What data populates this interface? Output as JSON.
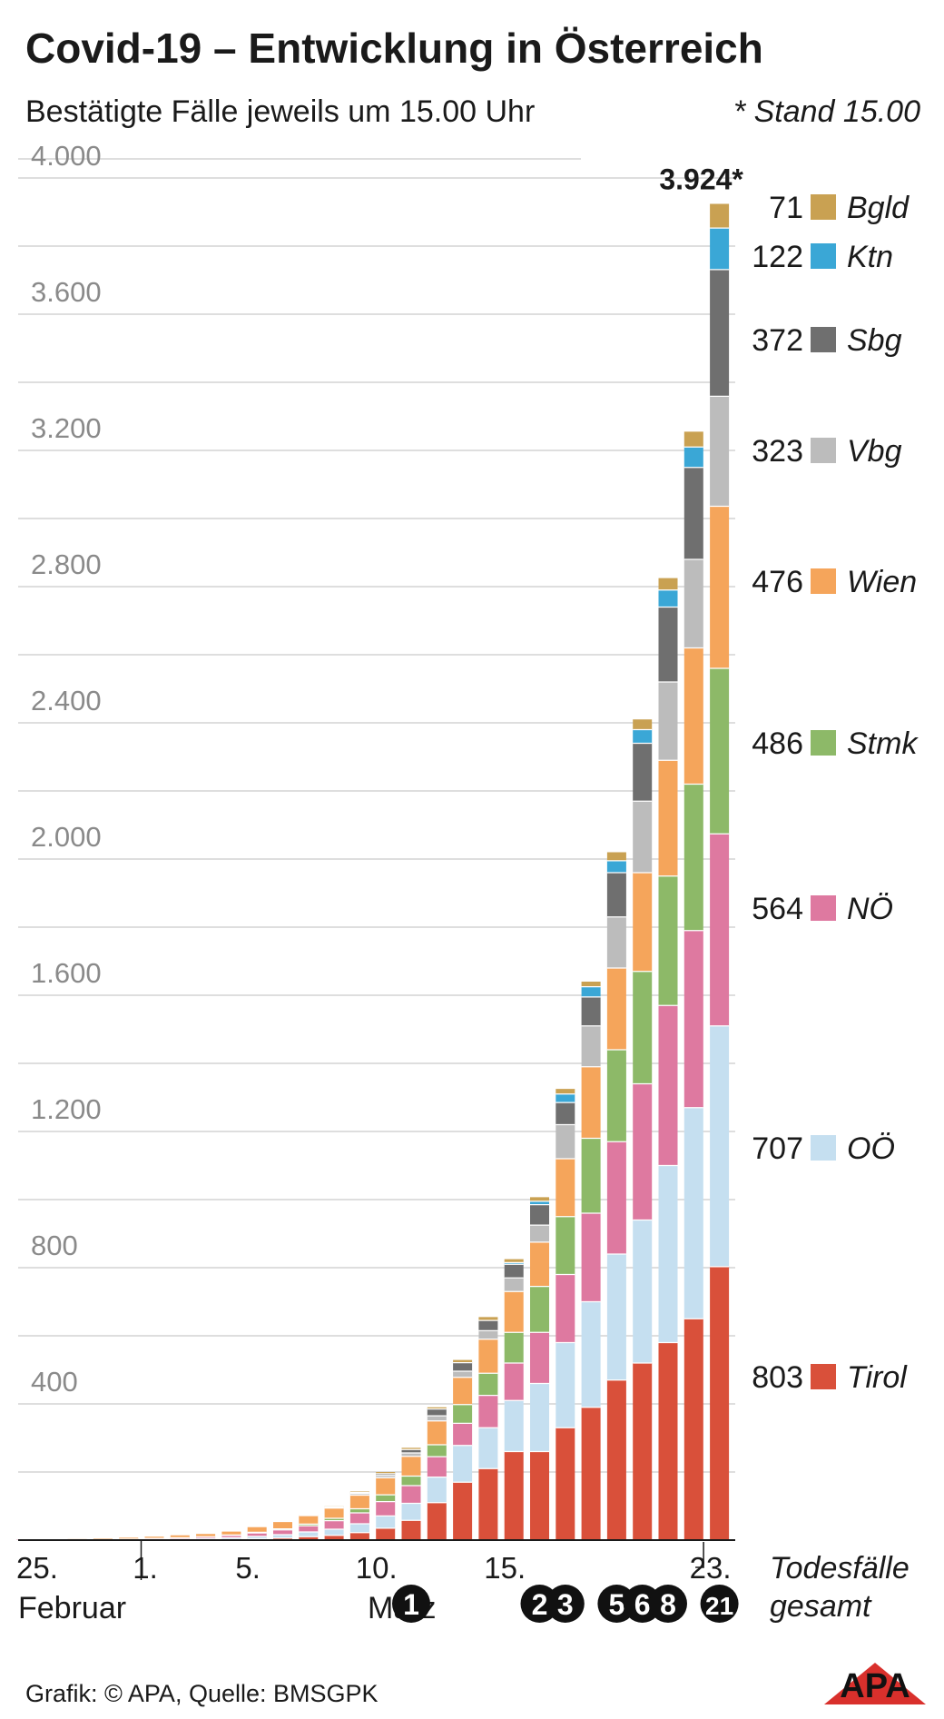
{
  "header": {
    "title": "Covid-19 – Entwicklung in Österreich",
    "subtitle": "Bestätigte Fälle jeweils um 15.00 Uhr",
    "stand_note": "* Stand 15.00"
  },
  "footer": {
    "credit": "Grafik: © APA, Quelle: BMSGPK",
    "logo_text": "APA"
  },
  "chart_data": {
    "type": "bar",
    "stacked": true,
    "title": "Covid-19 – Entwicklung in Österreich",
    "subtitle": "Bestätigte Fälle jeweils um 15.00 Uhr",
    "ylim": [
      0,
      4000
    ],
    "y_ticks": [
      400,
      800,
      1200,
      1600,
      2000,
      2400,
      2800,
      3200,
      3600,
      4000
    ],
    "y_tick_labels": [
      "400",
      "800",
      "1.200",
      "1.600",
      "2.000",
      "2.400",
      "2.800",
      "3.200",
      "3.600",
      "4.000"
    ],
    "grid": true,
    "x_tick_labels": [
      {
        "label": "25.",
        "index": 0
      },
      {
        "label": "1.",
        "index": 5
      },
      {
        "label": "5.",
        "index": 9
      },
      {
        "label": "10.",
        "index": 14
      },
      {
        "label": "15.",
        "index": 19
      },
      {
        "label": "23.",
        "index": 27
      }
    ],
    "month_labels": [
      {
        "label": "Februar",
        "index": 0
      },
      {
        "label": "März",
        "index": 15
      }
    ],
    "categories": [
      "25.02",
      "26.02",
      "27.02",
      "28.02",
      "29.02",
      "01.03",
      "02.03",
      "03.03",
      "04.03",
      "05.03",
      "06.03",
      "07.03",
      "08.03",
      "09.03",
      "10.03",
      "11.03",
      "12.03",
      "13.03",
      "14.03",
      "15.03",
      "16.03",
      "17.03",
      "18.03",
      "19.03",
      "20.03",
      "21.03",
      "22.03",
      "23.03"
    ],
    "total_label": "3.924*",
    "series": [
      {
        "name": "Tirol",
        "color": "#d9503a",
        "end_value": "803",
        "values": [
          0,
          0,
          0,
          0,
          0,
          0,
          0,
          1,
          2,
          4,
          6,
          10,
          14,
          22,
          35,
          58,
          110,
          170,
          210,
          260,
          260,
          330,
          390,
          470,
          520,
          580,
          650,
          803
        ]
      },
      {
        "name": "OÖ",
        "color": "#c5dff0",
        "end_value": "707",
        "values": [
          0,
          0,
          0,
          1,
          1,
          2,
          3,
          4,
          5,
          7,
          10,
          14,
          18,
          26,
          36,
          50,
          75,
          108,
          120,
          150,
          200,
          250,
          310,
          370,
          420,
          520,
          620,
          707
        ]
      },
      {
        "name": "NÖ",
        "color": "#de79a0",
        "end_value": "564",
        "values": [
          1,
          1,
          1,
          1,
          2,
          3,
          4,
          5,
          7,
          10,
          14,
          18,
          25,
          32,
          42,
          52,
          60,
          65,
          95,
          110,
          150,
          200,
          260,
          330,
          400,
          470,
          520,
          564
        ]
      },
      {
        "name": "Stmk",
        "color": "#8db968",
        "end_value": "486",
        "values": [
          0,
          0,
          0,
          0,
          0,
          0,
          0,
          0,
          1,
          2,
          3,
          5,
          7,
          12,
          20,
          28,
          35,
          55,
          65,
          90,
          135,
          170,
          220,
          270,
          330,
          380,
          430,
          486
        ]
      },
      {
        "name": "Wien",
        "color": "#f5a55b",
        "end_value": "476",
        "values": [
          0,
          1,
          2,
          3,
          4,
          5,
          7,
          8,
          10,
          15,
          20,
          25,
          30,
          40,
          50,
          58,
          70,
          80,
          100,
          120,
          130,
          170,
          210,
          240,
          290,
          340,
          400,
          476
        ]
      },
      {
        "name": "Vbg",
        "color": "#bcbcbc",
        "end_value": "323",
        "values": [
          0,
          0,
          0,
          0,
          0,
          0,
          0,
          0,
          0,
          0,
          0,
          0,
          2,
          5,
          7,
          10,
          15,
          18,
          25,
          40,
          50,
          100,
          120,
          150,
          210,
          230,
          260,
          323
        ]
      },
      {
        "name": "Sbg",
        "color": "#6f6f6f",
        "end_value": "372",
        "values": [
          0,
          0,
          0,
          0,
          0,
          0,
          0,
          0,
          0,
          0,
          0,
          1,
          2,
          3,
          5,
          10,
          20,
          25,
          30,
          40,
          60,
          65,
          85,
          130,
          170,
          220,
          270,
          372
        ]
      },
      {
        "name": "Ktn",
        "color": "#3aa7d6",
        "end_value": "122",
        "values": [
          0,
          0,
          0,
          0,
          0,
          0,
          0,
          0,
          0,
          0,
          0,
          0,
          0,
          0,
          0,
          0,
          0,
          0,
          0,
          5,
          10,
          25,
          30,
          35,
          40,
          50,
          60,
          122
        ]
      },
      {
        "name": "Bgld",
        "color": "#c9a152",
        "end_value": "71",
        "values": [
          0,
          0,
          0,
          0,
          0,
          0,
          0,
          0,
          0,
          0,
          0,
          1,
          2,
          3,
          5,
          5,
          5,
          8,
          10,
          10,
          12,
          15,
          15,
          25,
          30,
          35,
          45,
          71
        ]
      }
    ],
    "deaths": {
      "label_line1": "Todesfälle",
      "label_line2": "gesamt",
      "markers": [
        {
          "index": 15,
          "value": "1"
        },
        {
          "index": 20,
          "value": "2"
        },
        {
          "index": 21,
          "value": "3"
        },
        {
          "index": 23,
          "value": "5"
        },
        {
          "index": 24,
          "value": "6"
        },
        {
          "index": 25,
          "value": "8"
        },
        {
          "index": 27,
          "value": "21"
        }
      ]
    }
  }
}
